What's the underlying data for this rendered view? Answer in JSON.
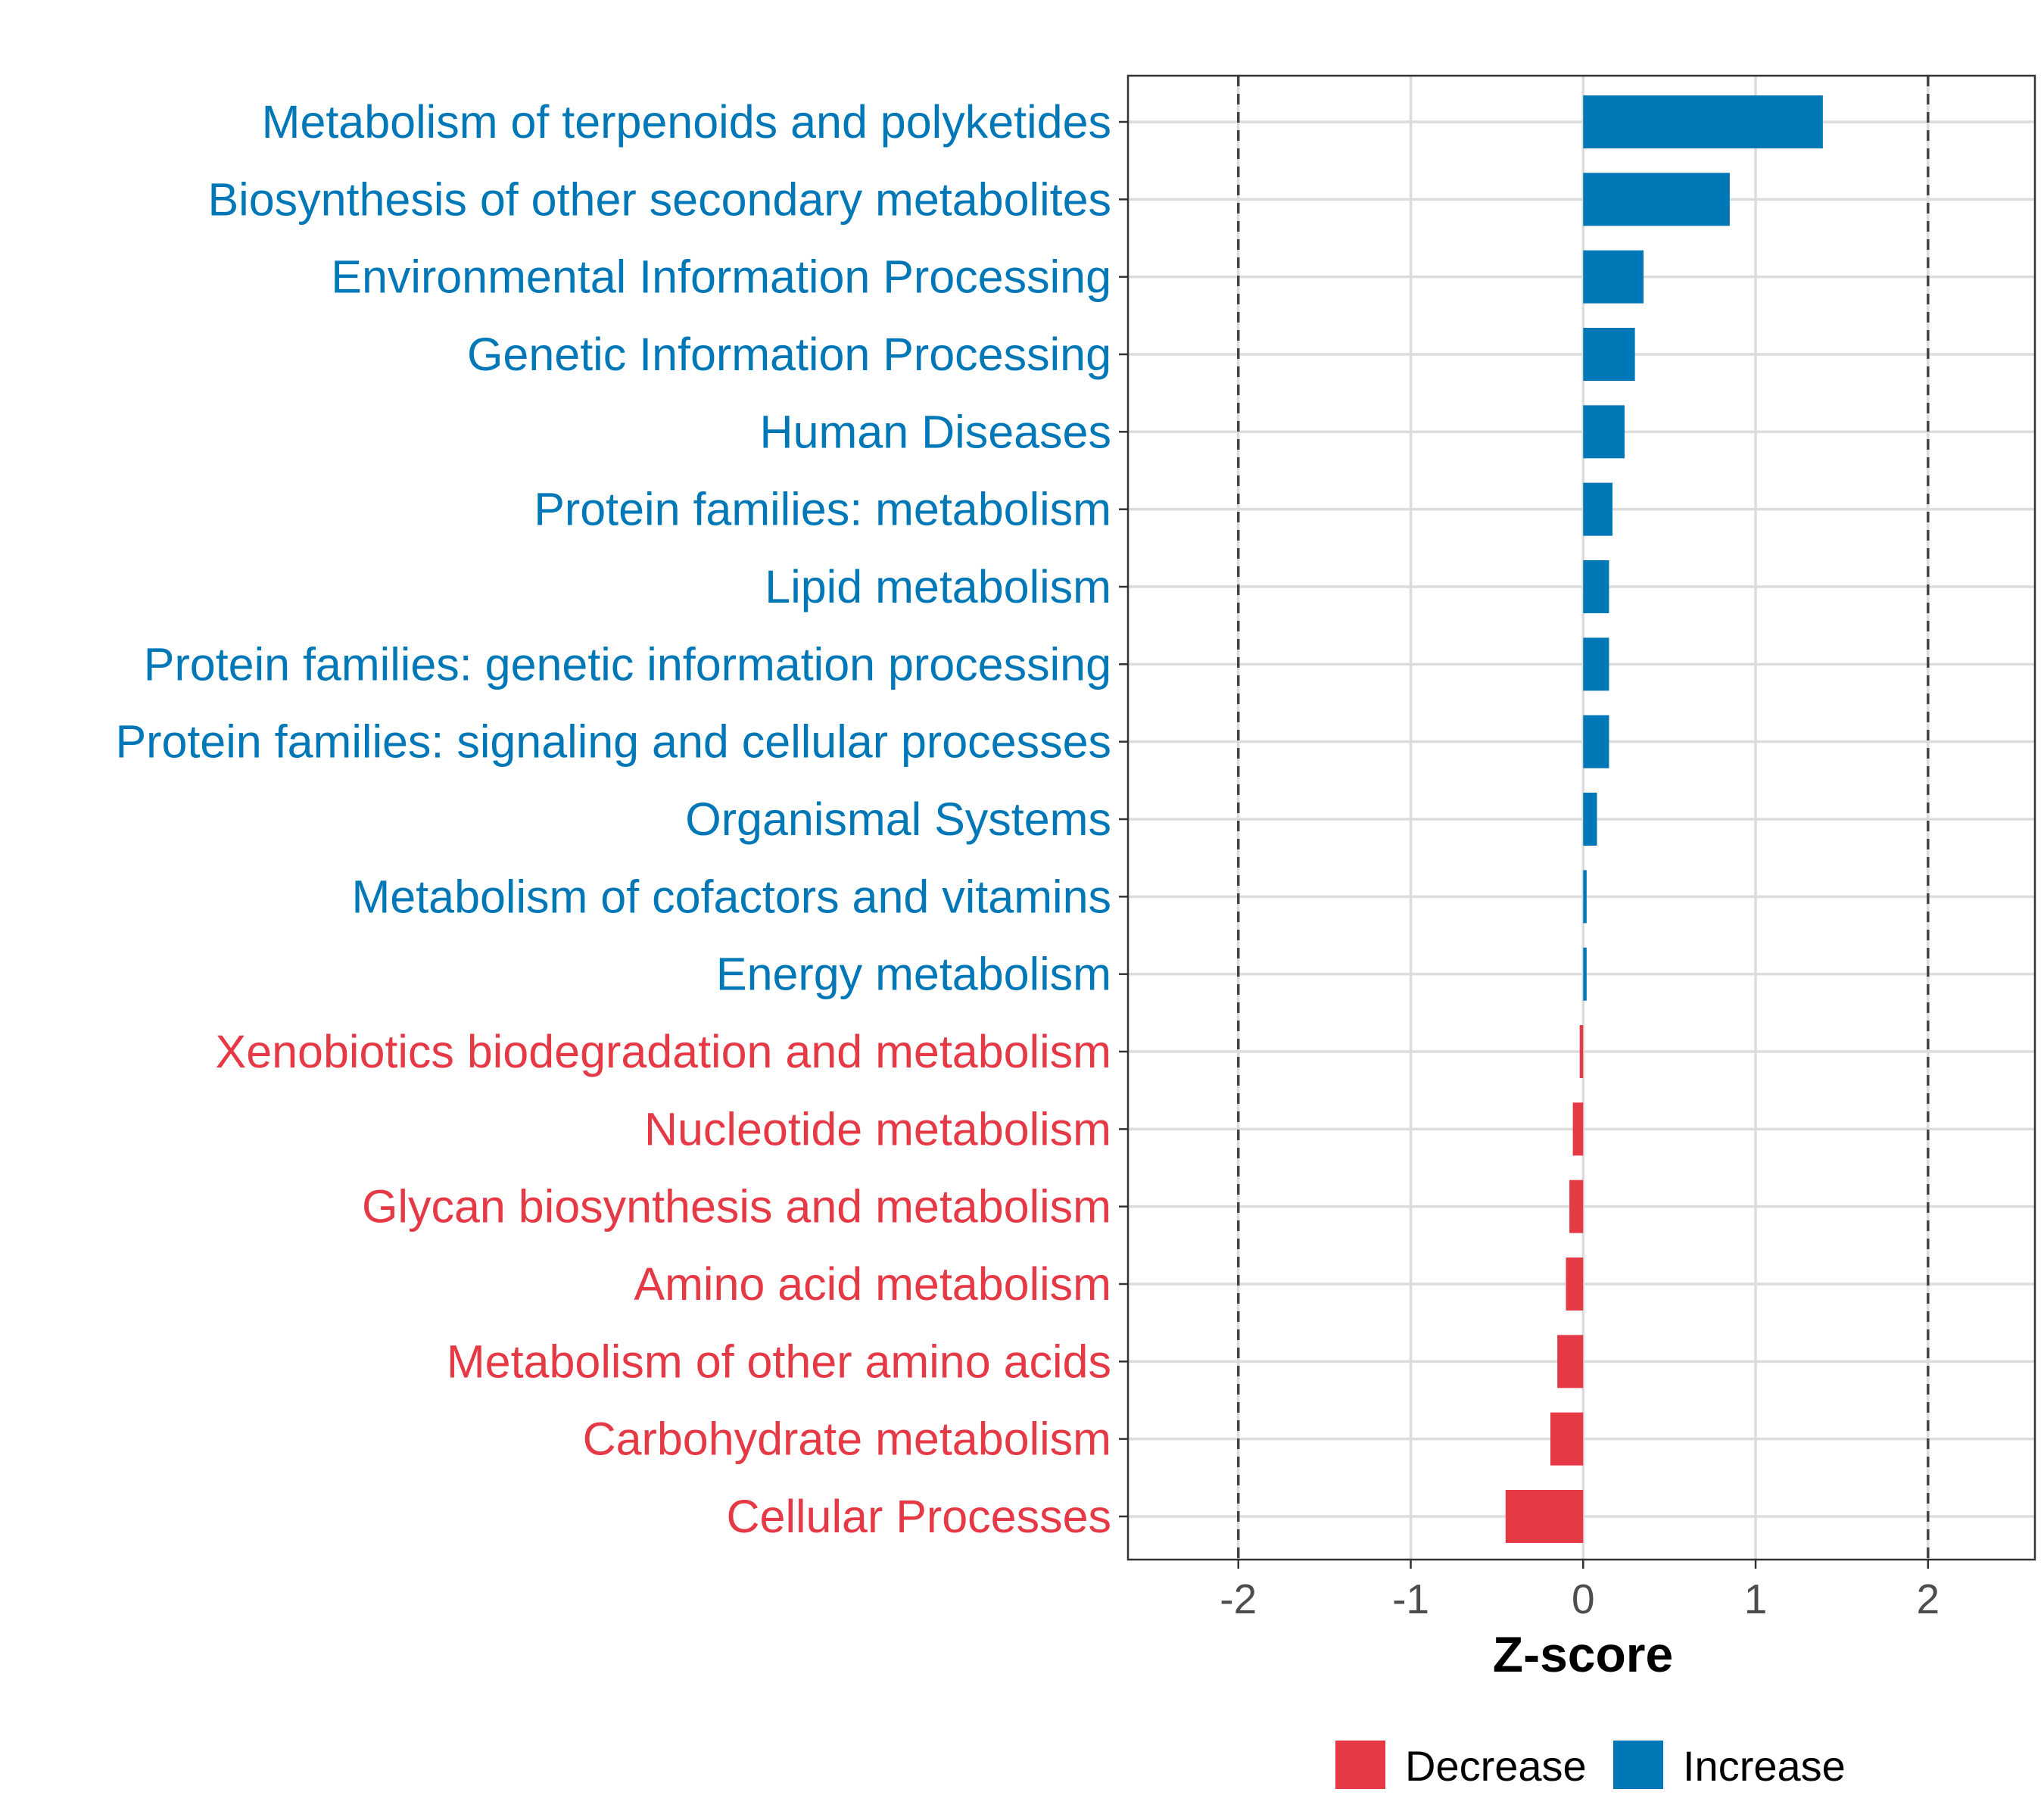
{
  "chart_data": {
    "type": "bar",
    "orientation": "horizontal",
    "title": "",
    "xlabel": "Z-score",
    "ylabel": "",
    "xlim": [
      -2.64,
      2.62
    ],
    "xticks": [
      -2,
      -1,
      0,
      1,
      2
    ],
    "xtick_labels": [
      "-2",
      "-1",
      "0",
      "1",
      "2"
    ],
    "reference_lines": [
      -2,
      2
    ],
    "grid": true,
    "categories": [
      "Metabolism of terpenoids and polyketides",
      "Biosynthesis of other secondary metabolites",
      "Environmental Information Processing",
      "Genetic Information Processing",
      "Human Diseases",
      "Protein families: metabolism",
      "Lipid metabolism",
      "Protein families: genetic information processing",
      "Protein families: signaling and cellular processes",
      "Organismal Systems",
      "Metabolism of cofactors and vitamins",
      "Energy metabolism",
      "Xenobiotics biodegradation and metabolism",
      "Nucleotide metabolism",
      "Glycan biosynthesis and metabolism",
      "Amino acid metabolism",
      "Metabolism of other amino acids",
      "Carbohydrate metabolism",
      "Cellular Processes"
    ],
    "values": [
      1.39,
      0.85,
      0.35,
      0.3,
      0.24,
      0.17,
      0.15,
      0.15,
      0.15,
      0.08,
      0.02,
      0.02,
      -0.02,
      -0.06,
      -0.08,
      -0.1,
      -0.15,
      -0.19,
      -0.45
    ],
    "legend": {
      "placement": "bottom",
      "entries": [
        {
          "label": "Decrease",
          "color": "#E63946"
        },
        {
          "label": "Increase",
          "color": "#0077B6"
        }
      ]
    }
  }
}
